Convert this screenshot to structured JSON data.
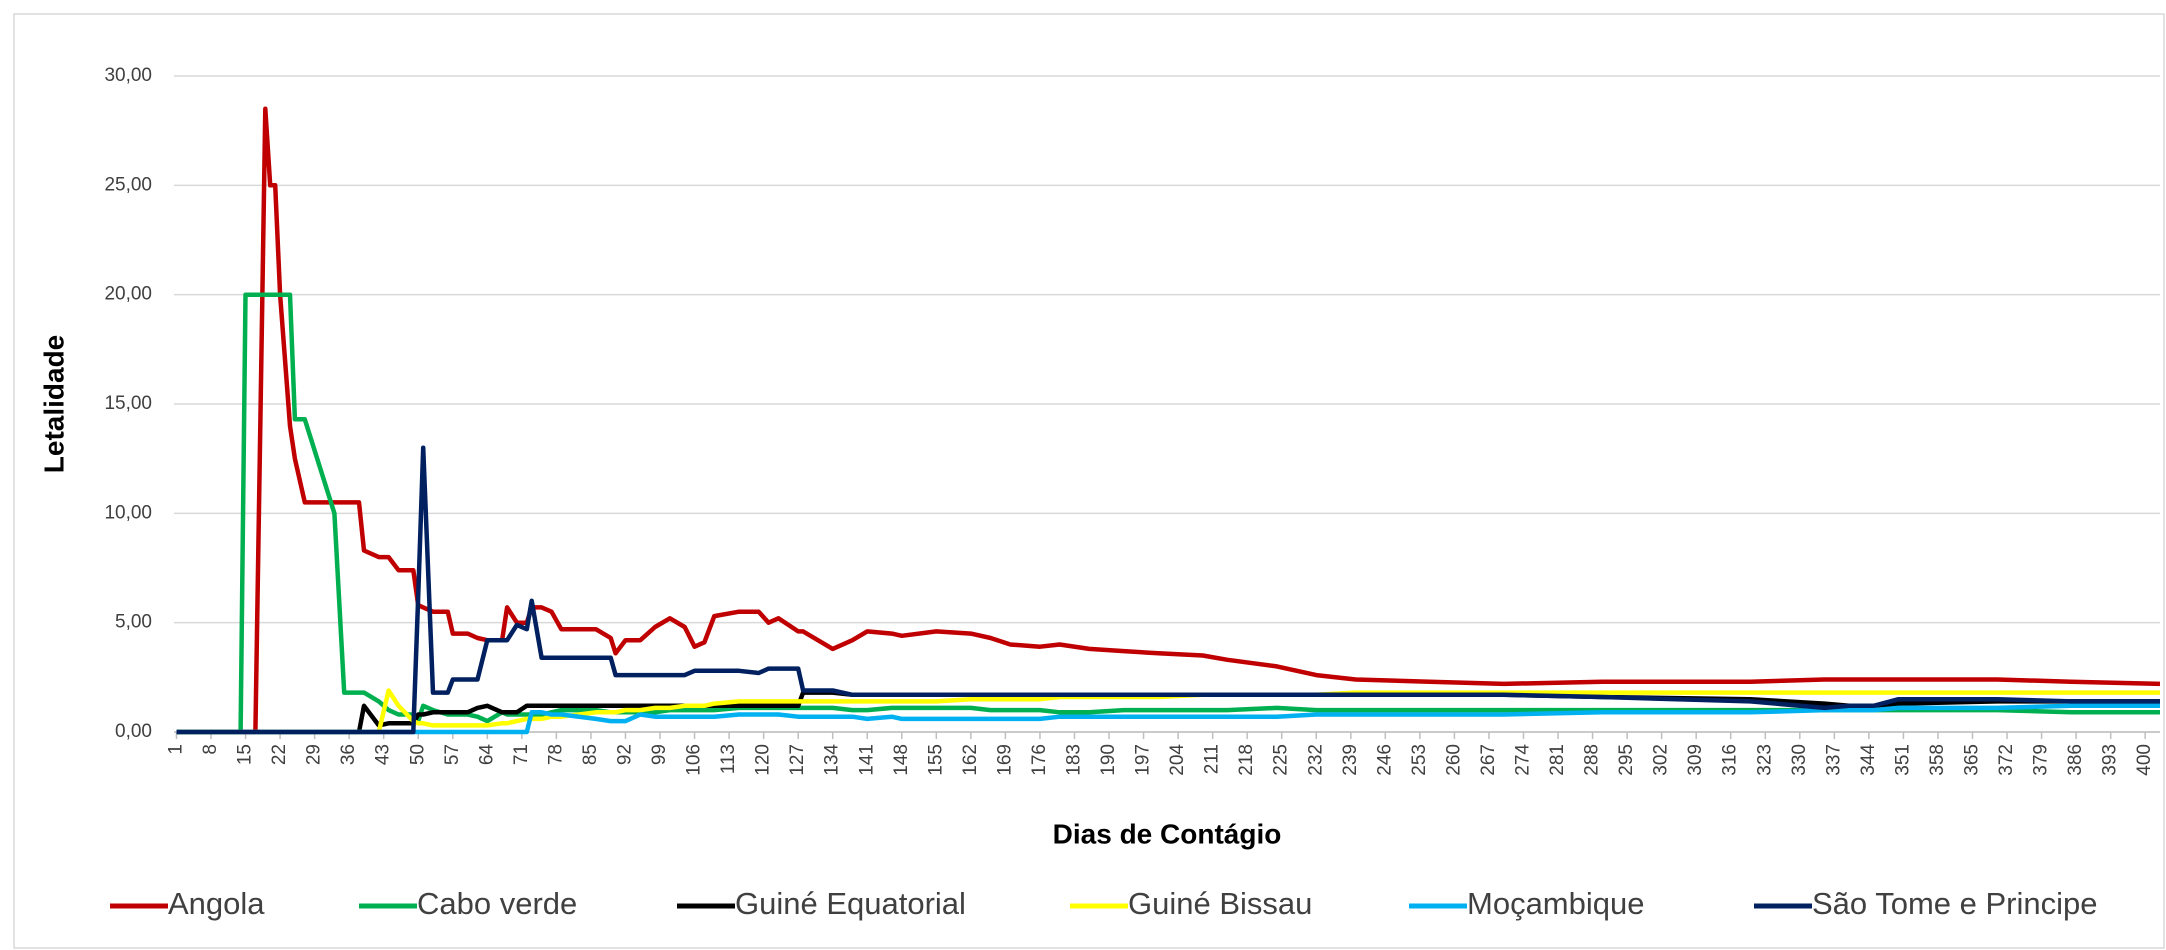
{
  "chart_data": {
    "type": "line",
    "x_label": "Dias de Contágio",
    "y_label": "Letalidade",
    "x": [
      1,
      14,
      15,
      17,
      18,
      19,
      20,
      21,
      22,
      24,
      25,
      27,
      33,
      35,
      36,
      38,
      39,
      42,
      44,
      46,
      49,
      50,
      51,
      53,
      56,
      57,
      60,
      62,
      64,
      67,
      68,
      70,
      72,
      73,
      75,
      77,
      79,
      86,
      89,
      90,
      92,
      95,
      98,
      101,
      104,
      106,
      108,
      110,
      115,
      119,
      121,
      123,
      127,
      128,
      131,
      134,
      138,
      141,
      146,
      148,
      155,
      162,
      166,
      170,
      176,
      180,
      186,
      193,
      200,
      209,
      214,
      224,
      232,
      240,
      255,
      270,
      290,
      320,
      335,
      340,
      345,
      350,
      370,
      385,
      403
    ],
    "series": [
      {
        "name": "Angola",
        "color": "#c00000",
        "values": [
          0,
          0,
          0,
          0,
          14,
          28.5,
          25,
          25,
          20,
          14,
          12.5,
          10.5,
          10.5,
          10.5,
          10.5,
          10.5,
          8.3,
          8,
          8,
          7.4,
          7.4,
          5.8,
          5.7,
          5.5,
          5.5,
          4.5,
          4.5,
          4.3,
          4.2,
          4.2,
          5.7,
          5,
          5,
          5.7,
          5.7,
          5.5,
          4.7,
          4.7,
          4.3,
          3.6,
          4.2,
          4.2,
          4.8,
          5.2,
          4.8,
          3.9,
          4.1,
          5.3,
          5.5,
          5.5,
          5.0,
          5.2,
          4.6,
          4.6,
          4.2,
          3.8,
          4.2,
          4.6,
          4.5,
          4.4,
          4.6,
          4.5,
          4.3,
          4.0,
          3.9,
          4.0,
          3.8,
          3.7,
          3.6,
          3.5,
          3.3,
          3.0,
          2.6,
          2.4,
          2.3,
          2.2,
          2.3,
          2.3,
          2.4,
          2.4,
          2.4,
          2.4,
          2.4,
          2.3,
          2.2
        ]
      },
      {
        "name": "Cabo verde",
        "color": "#00b050",
        "values": [
          0,
          0,
          20,
          20,
          20,
          20,
          20,
          20,
          20,
          20,
          14.3,
          14.3,
          10,
          1.8,
          1.8,
          1.8,
          1.8,
          1.4,
          1.0,
          0.8,
          0.8,
          0.5,
          1.2,
          1.0,
          0.8,
          0.8,
          0.8,
          0.7,
          0.5,
          0.9,
          0.8,
          0.8,
          0.8,
          0.8,
          0.8,
          0.9,
          1.0,
          1.0,
          0.9,
          0.9,
          0.9,
          0.9,
          0.9,
          1.0,
          1.0,
          1.0,
          1.0,
          1.0,
          1.1,
          1.1,
          1.1,
          1.1,
          1.1,
          1.1,
          1.1,
          1.1,
          1.0,
          1.0,
          1.1,
          1.1,
          1.1,
          1.1,
          1.0,
          1.0,
          1.0,
          0.9,
          0.9,
          1.0,
          1.0,
          1.0,
          1.0,
          1.1,
          1.0,
          1.0,
          1.0,
          1.0,
          1.0,
          1.0,
          1.0,
          1.0,
          1.0,
          1.0,
          1.0,
          0.9,
          0.9
        ]
      },
      {
        "name": "Guiné Equatorial",
        "color": "#000000",
        "values": [
          0,
          0,
          0,
          0,
          0,
          0,
          0,
          0,
          0,
          0,
          0,
          0,
          0,
          0,
          0,
          0,
          1.2,
          0.3,
          0.4,
          0.4,
          0.4,
          0.8,
          0.8,
          0.9,
          0.9,
          0.9,
          0.9,
          1.1,
          1.2,
          0.9,
          0.9,
          0.9,
          1.2,
          1.2,
          1.2,
          1.2,
          1.2,
          1.2,
          1.2,
          1.2,
          1.2,
          1.2,
          1.2,
          1.2,
          1.2,
          1.2,
          1.2,
          1.2,
          1.2,
          1.2,
          1.2,
          1.2,
          1.2,
          1.8,
          1.8,
          1.8,
          1.7,
          1.7,
          1.7,
          1.7,
          1.7,
          1.7,
          1.7,
          1.7,
          1.7,
          1.7,
          1.7,
          1.7,
          1.7,
          1.7,
          1.7,
          1.7,
          1.7,
          1.7,
          1.7,
          1.7,
          1.6,
          1.5,
          1.3,
          1.2,
          1.2,
          1.3,
          1.4,
          1.4,
          1.4
        ]
      },
      {
        "name": "Guiné Bissau",
        "color": "#ffff00",
        "values": [
          0,
          0,
          0,
          0,
          0,
          0,
          0,
          0,
          0,
          0,
          0,
          0,
          0,
          0,
          0,
          0,
          0,
          0,
          1.9,
          1.2,
          0.5,
          0.4,
          0.4,
          0.3,
          0.3,
          0.3,
          0.3,
          0.3,
          0.3,
          0.4,
          0.4,
          0.5,
          0.6,
          0.6,
          0.6,
          0.7,
          0.7,
          0.9,
          0.9,
          0.9,
          1.0,
          1.0,
          1.1,
          1.1,
          1.2,
          1.2,
          1.2,
          1.3,
          1.4,
          1.4,
          1.4,
          1.4,
          1.4,
          1.4,
          1.4,
          1.4,
          1.4,
          1.4,
          1.4,
          1.4,
          1.4,
          1.5,
          1.5,
          1.5,
          1.5,
          1.6,
          1.6,
          1.6,
          1.6,
          1.7,
          1.7,
          1.7,
          1.7,
          1.8,
          1.8,
          1.8,
          1.8,
          1.8,
          1.8,
          1.8,
          1.8,
          1.8,
          1.8,
          1.8,
          1.8
        ]
      },
      {
        "name": "Moçambique",
        "color": "#00b0f0",
        "values": [
          0,
          0,
          0,
          0,
          0,
          0,
          0,
          0,
          0,
          0,
          0,
          0,
          0,
          0,
          0,
          0,
          0,
          0,
          0,
          0,
          0,
          0,
          0,
          0,
          0,
          0,
          0,
          0,
          0,
          0,
          0,
          0,
          0,
          0.9,
          0.9,
          0.8,
          0.8,
          0.6,
          0.5,
          0.5,
          0.5,
          0.8,
          0.7,
          0.7,
          0.7,
          0.7,
          0.7,
          0.7,
          0.8,
          0.8,
          0.8,
          0.8,
          0.7,
          0.7,
          0.7,
          0.7,
          0.7,
          0.6,
          0.7,
          0.6,
          0.6,
          0.6,
          0.6,
          0.6,
          0.6,
          0.7,
          0.7,
          0.7,
          0.7,
          0.7,
          0.7,
          0.7,
          0.8,
          0.8,
          0.8,
          0.8,
          0.9,
          0.9,
          1.0,
          1.0,
          1.0,
          1.1,
          1.1,
          1.2,
          1.2
        ]
      },
      {
        "name": "São Tome e Principe",
        "color": "#002060",
        "values": [
          0,
          0,
          0,
          0,
          0,
          0,
          0,
          0,
          0,
          0,
          0,
          0,
          0,
          0,
          0,
          0,
          0,
          0,
          0,
          0,
          0,
          6.2,
          13,
          1.8,
          1.8,
          2.4,
          2.4,
          2.4,
          4.2,
          4.2,
          4.2,
          4.9,
          4.7,
          6,
          3.4,
          3.4,
          3.4,
          3.4,
          3.4,
          2.6,
          2.6,
          2.6,
          2.6,
          2.6,
          2.6,
          2.8,
          2.8,
          2.8,
          2.8,
          2.7,
          2.9,
          2.9,
          2.9,
          1.9,
          1.9,
          1.9,
          1.7,
          1.7,
          1.7,
          1.7,
          1.7,
          1.7,
          1.7,
          1.7,
          1.7,
          1.7,
          1.7,
          1.7,
          1.7,
          1.7,
          1.7,
          1.7,
          1.7,
          1.7,
          1.7,
          1.7,
          1.6,
          1.4,
          1.1,
          1.2,
          1.2,
          1.5,
          1.5,
          1.4,
          1.4
        ]
      }
    ],
    "xlim": [
      0.5,
      403
    ],
    "xticks": [
      1,
      8,
      15,
      22,
      29,
      36,
      43,
      50,
      57,
      64,
      71,
      78,
      85,
      92,
      99,
      106,
      113,
      120,
      127,
      134,
      141,
      148,
      155,
      162,
      169,
      176,
      183,
      190,
      197,
      204,
      211,
      218,
      225,
      232,
      239,
      246,
      253,
      260,
      267,
      274,
      281,
      288,
      295,
      302,
      309,
      316,
      323,
      330,
      337,
      344,
      351,
      358,
      365,
      372,
      379,
      386,
      393,
      400
    ],
    "ylim": [
      0,
      30
    ],
    "yticks": [
      {
        "value": 0,
        "label": "0,00"
      },
      {
        "value": 5,
        "label": "5,00"
      },
      {
        "value": 10,
        "label": "10,00"
      },
      {
        "value": 15,
        "label": "15,00"
      },
      {
        "value": 20,
        "label": "20,00"
      },
      {
        "value": 25,
        "label": "25,00"
      },
      {
        "value": 30,
        "label": "30,00"
      }
    ],
    "grid": true,
    "legend": "bottom"
  }
}
